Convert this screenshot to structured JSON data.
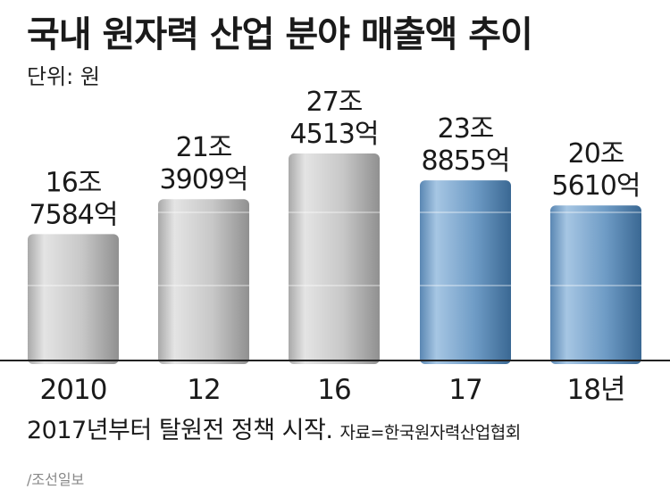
{
  "chart_data": {
    "type": "bar",
    "title": "국내 원자력 산업 분야 매출액 추이",
    "unit_label": "단위: 원",
    "categories": [
      "2010",
      "12",
      "16",
      "17",
      "18년"
    ],
    "values": [
      167584,
      213909,
      274513,
      238855,
      205610
    ],
    "value_labels": [
      [
        "16조",
        "7584억"
      ],
      [
        "21조",
        "3909억"
      ],
      [
        "27조",
        "4513억"
      ],
      [
        "23조",
        "8855억"
      ],
      [
        "20조",
        "5610억"
      ]
    ],
    "bar_styles": [
      "gray",
      "gray",
      "gray",
      "blue",
      "blue"
    ],
    "colors": {
      "gray_light": "#dcdcdc",
      "gray_mid": "#bdbdbd",
      "gray_dark": "#9a9a9a",
      "blue_light": "#8fb4d6",
      "blue_mid": "#6693bd",
      "blue_dark": "#3f6f9c",
      "gridline": "#e5e5e5",
      "baseline": "#222222"
    },
    "grid": true
  },
  "footer": {
    "note": "2017년부터 탈원전 정책 시작.",
    "source": "자료=한국원자력산업협회"
  },
  "credit": "/조선일보"
}
